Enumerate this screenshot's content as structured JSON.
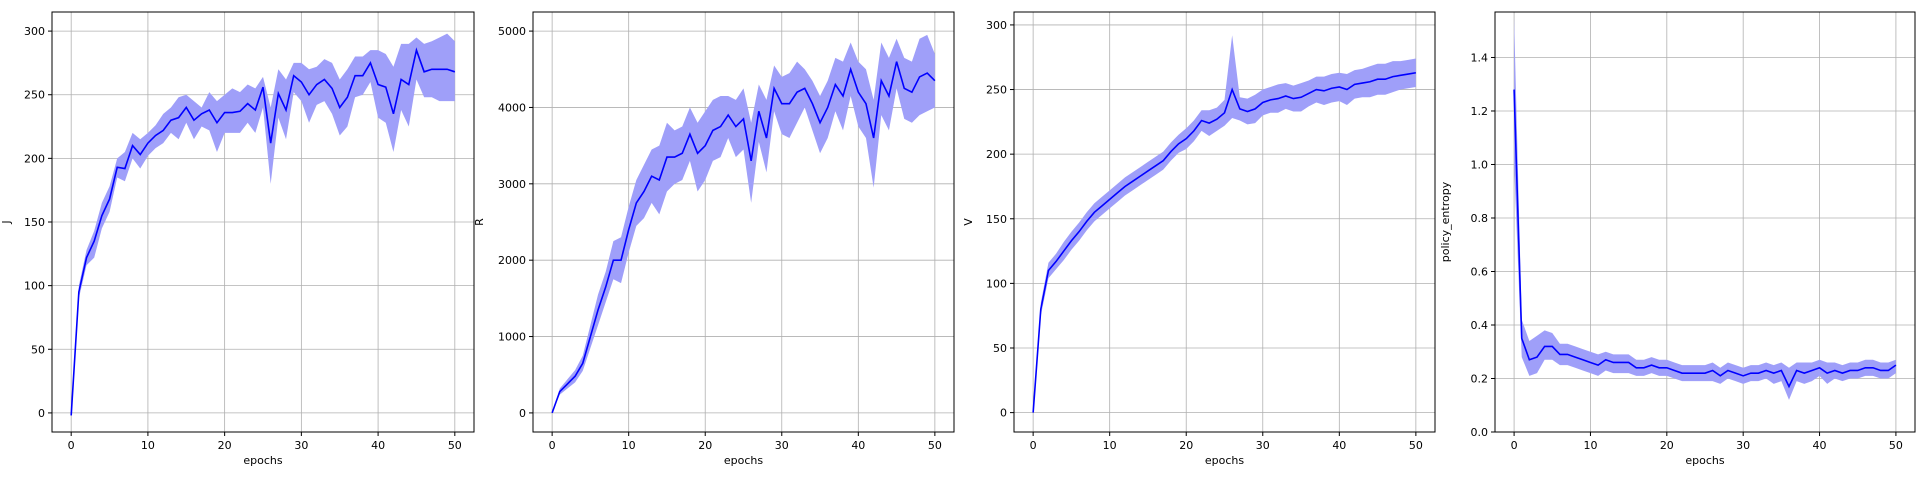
{
  "figure": {
    "line_color": "#0000ff",
    "band_color": "#9f9ff9",
    "grid_color": "#b0b0b0"
  },
  "chart_data": [
    {
      "type": "line",
      "xlabel": "epochs",
      "ylabel": "J",
      "xlim": [
        -2.5,
        52.5
      ],
      "ylim": [
        -15,
        315
      ],
      "xticks": [
        0,
        10,
        20,
        30,
        40,
        50
      ],
      "yticks": [
        0,
        50,
        100,
        150,
        200,
        250,
        300
      ],
      "grid": true,
      "band": "shaded",
      "x": [
        0,
        1,
        2,
        3,
        4,
        5,
        6,
        7,
        8,
        9,
        10,
        11,
        12,
        13,
        14,
        15,
        16,
        17,
        18,
        19,
        20,
        21,
        22,
        23,
        24,
        25,
        26,
        27,
        28,
        29,
        30,
        31,
        32,
        33,
        34,
        35,
        36,
        37,
        38,
        39,
        40,
        41,
        42,
        43,
        44,
        45,
        46,
        47,
        48,
        49,
        50
      ],
      "mean": [
        -2,
        95,
        122,
        135,
        155,
        168,
        193,
        192,
        210,
        203,
        212,
        218,
        222,
        230,
        232,
        240,
        230,
        235,
        238,
        228,
        236,
        236,
        237,
        243,
        238,
        256,
        212,
        251,
        238,
        265,
        260,
        250,
        258,
        262,
        255,
        240,
        248,
        265,
        265,
        275,
        258,
        256,
        235,
        262,
        258,
        285,
        268,
        270,
        270,
        270,
        268
      ],
      "upper": [
        -2,
        100,
        128,
        143,
        165,
        178,
        200,
        205,
        220,
        215,
        220,
        226,
        235,
        240,
        248,
        250,
        245,
        240,
        252,
        245,
        250,
        255,
        252,
        258,
        255,
        264,
        240,
        270,
        262,
        275,
        275,
        270,
        272,
        278,
        275,
        262,
        270,
        280,
        280,
        285,
        285,
        282,
        272,
        290,
        290,
        295,
        290,
        292,
        295,
        298,
        292
      ],
      "lower": [
        -2,
        90,
        116,
        122,
        145,
        158,
        185,
        182,
        200,
        192,
        202,
        208,
        212,
        220,
        215,
        228,
        215,
        225,
        222,
        205,
        220,
        220,
        220,
        228,
        220,
        240,
        180,
        232,
        215,
        252,
        245,
        228,
        242,
        245,
        235,
        218,
        225,
        248,
        250,
        260,
        232,
        228,
        205,
        238,
        225,
        262,
        248,
        248,
        245,
        245,
        245
      ]
    },
    {
      "type": "line",
      "xlabel": "epochs",
      "ylabel": "R",
      "xlim": [
        -2.5,
        52.5
      ],
      "ylim": [
        -250,
        5250
      ],
      "xticks": [
        0,
        10,
        20,
        30,
        40,
        50
      ],
      "yticks": [
        0,
        1000,
        2000,
        3000,
        4000,
        5000
      ],
      "grid": true,
      "band": "shaded",
      "x": [
        0,
        1,
        2,
        3,
        4,
        5,
        6,
        7,
        8,
        9,
        10,
        11,
        12,
        13,
        14,
        15,
        16,
        17,
        18,
        19,
        20,
        21,
        22,
        23,
        24,
        25,
        26,
        27,
        28,
        29,
        30,
        31,
        32,
        33,
        34,
        35,
        36,
        37,
        38,
        39,
        40,
        41,
        42,
        43,
        44,
        45,
        46,
        47,
        48,
        49,
        50
      ],
      "mean": [
        0,
        280,
        380,
        480,
        650,
        1000,
        1350,
        1650,
        2000,
        2000,
        2400,
        2750,
        2900,
        3100,
        3050,
        3350,
        3350,
        3400,
        3650,
        3400,
        3500,
        3700,
        3750,
        3900,
        3750,
        3850,
        3300,
        3950,
        3600,
        4250,
        4050,
        4050,
        4200,
        4250,
        4050,
        3800,
        4000,
        4300,
        4150,
        4500,
        4200,
        4050,
        3600,
        4350,
        4150,
        4600,
        4250,
        4200,
        4400,
        4450,
        4350
      ],
      "upper": [
        0,
        320,
        440,
        560,
        750,
        1150,
        1550,
        1850,
        2250,
        2300,
        2700,
        3050,
        3250,
        3450,
        3500,
        3800,
        3700,
        3750,
        4000,
        3800,
        3950,
        4100,
        4150,
        4150,
        4100,
        4250,
        3800,
        4300,
        4100,
        4550,
        4400,
        4450,
        4600,
        4500,
        4350,
        4150,
        4350,
        4650,
        4600,
        4850,
        4600,
        4500,
        4100,
        4850,
        4650,
        4900,
        4650,
        4600,
        4900,
        4950,
        4700
      ],
      "lower": [
        0,
        240,
        320,
        400,
        550,
        850,
        1150,
        1450,
        1750,
        1700,
        2100,
        2450,
        2550,
        2750,
        2600,
        2900,
        3000,
        3050,
        3300,
        2900,
        3050,
        3300,
        3350,
        3600,
        3350,
        3450,
        2750,
        3550,
        3150,
        3950,
        3650,
        3600,
        3800,
        4000,
        3700,
        3400,
        3600,
        3950,
        3700,
        4150,
        3750,
        3600,
        2950,
        3900,
        3700,
        4250,
        3850,
        3800,
        3900,
        3950,
        4000
      ]
    },
    {
      "type": "line",
      "xlabel": "epochs",
      "ylabel": "V",
      "xlim": [
        -2.5,
        52.5
      ],
      "ylim": [
        -15,
        310
      ],
      "xticks": [
        0,
        10,
        20,
        30,
        40,
        50
      ],
      "yticks": [
        0,
        50,
        100,
        150,
        200,
        250,
        300
      ],
      "grid": true,
      "band": "shaded",
      "x": [
        0,
        1,
        2,
        3,
        4,
        5,
        6,
        7,
        8,
        9,
        10,
        11,
        12,
        13,
        14,
        15,
        16,
        17,
        18,
        19,
        20,
        21,
        22,
        23,
        24,
        25,
        26,
        27,
        28,
        29,
        30,
        31,
        32,
        33,
        34,
        35,
        36,
        37,
        38,
        39,
        40,
        41,
        42,
        43,
        44,
        45,
        46,
        47,
        48,
        49,
        50
      ],
      "mean": [
        0,
        80,
        110,
        117,
        125,
        133,
        140,
        148,
        155,
        160,
        165,
        170,
        175,
        179,
        183,
        187,
        191,
        195,
        202,
        208,
        212,
        218,
        226,
        224,
        227,
        232,
        250,
        235,
        233,
        235,
        240,
        242,
        243,
        245,
        243,
        244,
        247,
        250,
        249,
        251,
        252,
        250,
        254,
        255,
        256,
        258,
        258,
        260,
        261,
        262,
        263
      ],
      "upper": [
        0,
        85,
        116,
        123,
        132,
        140,
        147,
        155,
        162,
        167,
        172,
        177,
        182,
        186,
        190,
        194,
        198,
        202,
        209,
        215,
        220,
        226,
        234,
        234,
        236,
        242,
        292,
        244,
        243,
        246,
        250,
        252,
        254,
        255,
        253,
        255,
        257,
        260,
        260,
        262,
        263,
        262,
        265,
        266,
        268,
        270,
        270,
        272,
        272,
        273,
        274
      ],
      "lower": [
        0,
        75,
        104,
        111,
        118,
        126,
        133,
        141,
        148,
        153,
        158,
        163,
        168,
        172,
        176,
        180,
        184,
        188,
        195,
        201,
        204,
        210,
        218,
        214,
        218,
        222,
        228,
        226,
        223,
        224,
        230,
        232,
        232,
        235,
        233,
        233,
        237,
        240,
        238,
        240,
        241,
        238,
        243,
        244,
        244,
        246,
        246,
        248,
        250,
        251,
        252
      ]
    },
    {
      "type": "line",
      "xlabel": "epochs",
      "ylabel": "policy_entropy",
      "xlim": [
        -2.5,
        52.5
      ],
      "ylim": [
        0,
        1.57
      ],
      "xticks": [
        0,
        10,
        20,
        30,
        40,
        50
      ],
      "yticks": [
        0.0,
        0.2,
        0.4,
        0.6,
        0.8,
        1.0,
        1.2,
        1.4
      ],
      "grid": true,
      "band": "shaded",
      "x": [
        0,
        1,
        2,
        3,
        4,
        5,
        6,
        7,
        8,
        9,
        10,
        11,
        12,
        13,
        14,
        15,
        16,
        17,
        18,
        19,
        20,
        21,
        22,
        23,
        24,
        25,
        26,
        27,
        28,
        29,
        30,
        31,
        32,
        33,
        34,
        35,
        36,
        37,
        38,
        39,
        40,
        41,
        42,
        43,
        44,
        45,
        46,
        47,
        48,
        49,
        50
      ],
      "mean": [
        1.28,
        0.35,
        0.27,
        0.28,
        0.32,
        0.32,
        0.29,
        0.29,
        0.28,
        0.27,
        0.26,
        0.25,
        0.27,
        0.26,
        0.26,
        0.26,
        0.24,
        0.24,
        0.25,
        0.24,
        0.24,
        0.23,
        0.22,
        0.22,
        0.22,
        0.22,
        0.23,
        0.21,
        0.23,
        0.22,
        0.21,
        0.22,
        0.22,
        0.23,
        0.22,
        0.23,
        0.17,
        0.23,
        0.22,
        0.23,
        0.24,
        0.22,
        0.23,
        0.22,
        0.23,
        0.23,
        0.24,
        0.24,
        0.23,
        0.23,
        0.25
      ],
      "upper": [
        1.55,
        0.42,
        0.34,
        0.36,
        0.38,
        0.37,
        0.33,
        0.33,
        0.32,
        0.31,
        0.3,
        0.29,
        0.3,
        0.29,
        0.29,
        0.29,
        0.27,
        0.27,
        0.28,
        0.27,
        0.27,
        0.26,
        0.25,
        0.25,
        0.25,
        0.25,
        0.26,
        0.24,
        0.26,
        0.25,
        0.24,
        0.25,
        0.25,
        0.26,
        0.25,
        0.26,
        0.24,
        0.26,
        0.26,
        0.26,
        0.27,
        0.26,
        0.26,
        0.25,
        0.26,
        0.26,
        0.27,
        0.27,
        0.26,
        0.26,
        0.27
      ],
      "lower": [
        1.0,
        0.28,
        0.21,
        0.22,
        0.27,
        0.27,
        0.25,
        0.25,
        0.24,
        0.23,
        0.22,
        0.21,
        0.23,
        0.22,
        0.22,
        0.22,
        0.21,
        0.21,
        0.22,
        0.21,
        0.21,
        0.2,
        0.19,
        0.19,
        0.19,
        0.19,
        0.19,
        0.18,
        0.2,
        0.19,
        0.18,
        0.19,
        0.19,
        0.2,
        0.18,
        0.19,
        0.12,
        0.19,
        0.18,
        0.19,
        0.21,
        0.18,
        0.2,
        0.19,
        0.2,
        0.2,
        0.21,
        0.21,
        0.2,
        0.2,
        0.22
      ]
    }
  ]
}
